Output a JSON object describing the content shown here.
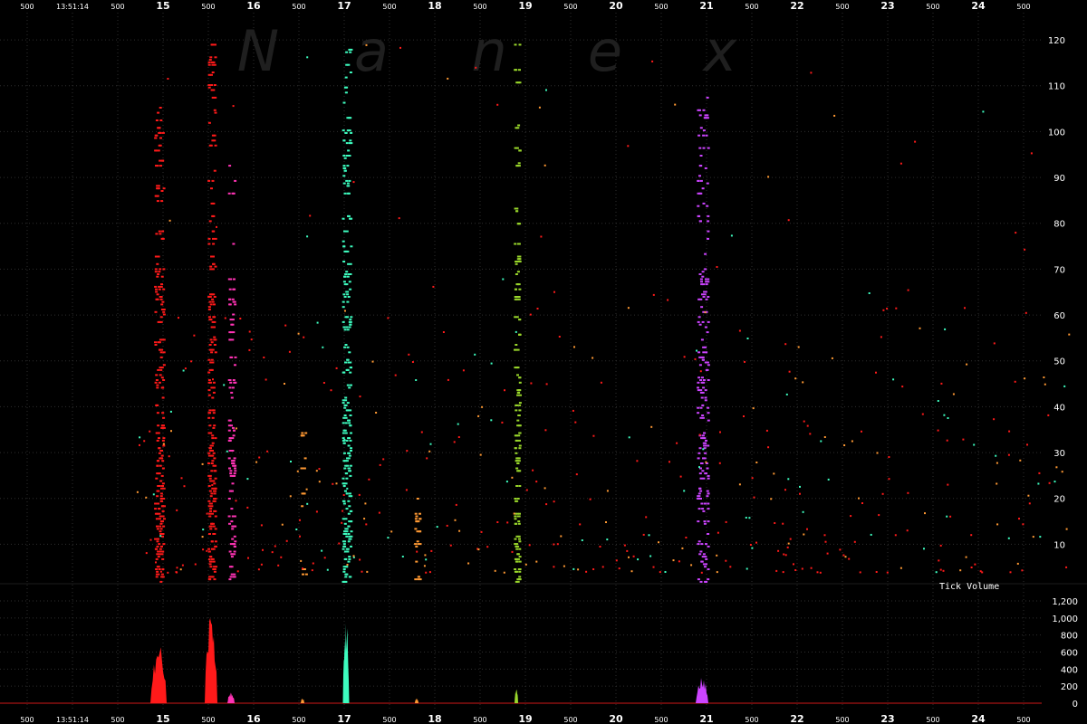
{
  "chart_data": [
    {
      "type": "scatter",
      "title": "",
      "watermark": [
        "N",
        "a",
        "n",
        "e",
        "x"
      ],
      "start_time_label": "13:51:14",
      "x_tick_labels": [
        "500",
        "13:51:14",
        "500",
        "15",
        "500",
        "16",
        "500",
        "17",
        "500",
        "18",
        "500",
        "19",
        "500",
        "20",
        "500",
        "21",
        "500",
        "22",
        "500",
        "23",
        "500",
        "24",
        "500"
      ],
      "x_tick_values": [
        13.5,
        14.0,
        14.5,
        15.0,
        15.5,
        16.0,
        16.5,
        17.0,
        17.5,
        18.0,
        18.5,
        19.0,
        19.5,
        20.0,
        20.5,
        21.0,
        21.5,
        22.0,
        22.5,
        23.0,
        23.5,
        24.0,
        24.5
      ],
      "xlim": [
        13.2,
        25.2
      ],
      "ylim": [
        1,
        121
      ],
      "y_ticks": [
        10,
        20,
        30,
        40,
        50,
        60,
        70,
        80,
        90,
        100,
        110,
        120
      ],
      "grid": true,
      "bursts": [
        {
          "x": 14.95,
          "width": 0.05,
          "ymax": 106,
          "color": "#ff1a1a",
          "density": 0.85
        },
        {
          "x": 15.53,
          "width": 0.04,
          "ymax": 120,
          "color": "#ff1a1a",
          "density": 0.8
        },
        {
          "x": 15.75,
          "width": 0.035,
          "ymax": 95,
          "color": "#ff33b5",
          "density": 0.45
        },
        {
          "x": 16.54,
          "width": 0.01,
          "ymax": 35,
          "color": "#ff9933",
          "density": 0.25
        },
        {
          "x": 17.02,
          "width": 0.045,
          "ymax": 120,
          "color": "#3dfcbf",
          "density": 0.85
        },
        {
          "x": 17.8,
          "width": 0.015,
          "ymax": 22,
          "color": "#ff9933",
          "density": 0.35
        },
        {
          "x": 18.9,
          "width": 0.02,
          "ymax": 120,
          "color": "#99d62b",
          "density": 0.55
        },
        {
          "x": 20.95,
          "width": 0.06,
          "ymax": 108,
          "color": "#cc44ff",
          "density": 0.75
        }
      ],
      "scatter_colors": [
        "#ff1a1a",
        "#ff1a1a",
        "#ff1a1a",
        "#3dfcbf",
        "#ff9933"
      ]
    },
    {
      "type": "area",
      "title": "Tick Volume",
      "xlim": [
        13.2,
        25.2
      ],
      "ylim": [
        0,
        1200
      ],
      "y_ticks": [
        0,
        200,
        400,
        600,
        800,
        1000,
        1200
      ],
      "y_tick_labels": [
        "0",
        "200",
        "400",
        "600",
        "800",
        "1,000",
        "1,200"
      ],
      "peaks": [
        {
          "x": 14.95,
          "width": 0.09,
          "value": 720,
          "color": "#ff1a1a"
        },
        {
          "x": 15.53,
          "width": 0.07,
          "value": 1100,
          "color": "#ff1a1a"
        },
        {
          "x": 15.75,
          "width": 0.04,
          "value": 130,
          "color": "#ff33b5"
        },
        {
          "x": 16.54,
          "width": 0.015,
          "value": 60,
          "color": "#ff9933"
        },
        {
          "x": 17.02,
          "width": 0.035,
          "value": 1050,
          "color": "#3dfcbf"
        },
        {
          "x": 17.8,
          "width": 0.02,
          "value": 60,
          "color": "#ff9933"
        },
        {
          "x": 18.9,
          "width": 0.02,
          "value": 190,
          "color": "#99d62b"
        },
        {
          "x": 20.95,
          "width": 0.07,
          "value": 320,
          "color": "#cc44ff"
        }
      ]
    }
  ]
}
